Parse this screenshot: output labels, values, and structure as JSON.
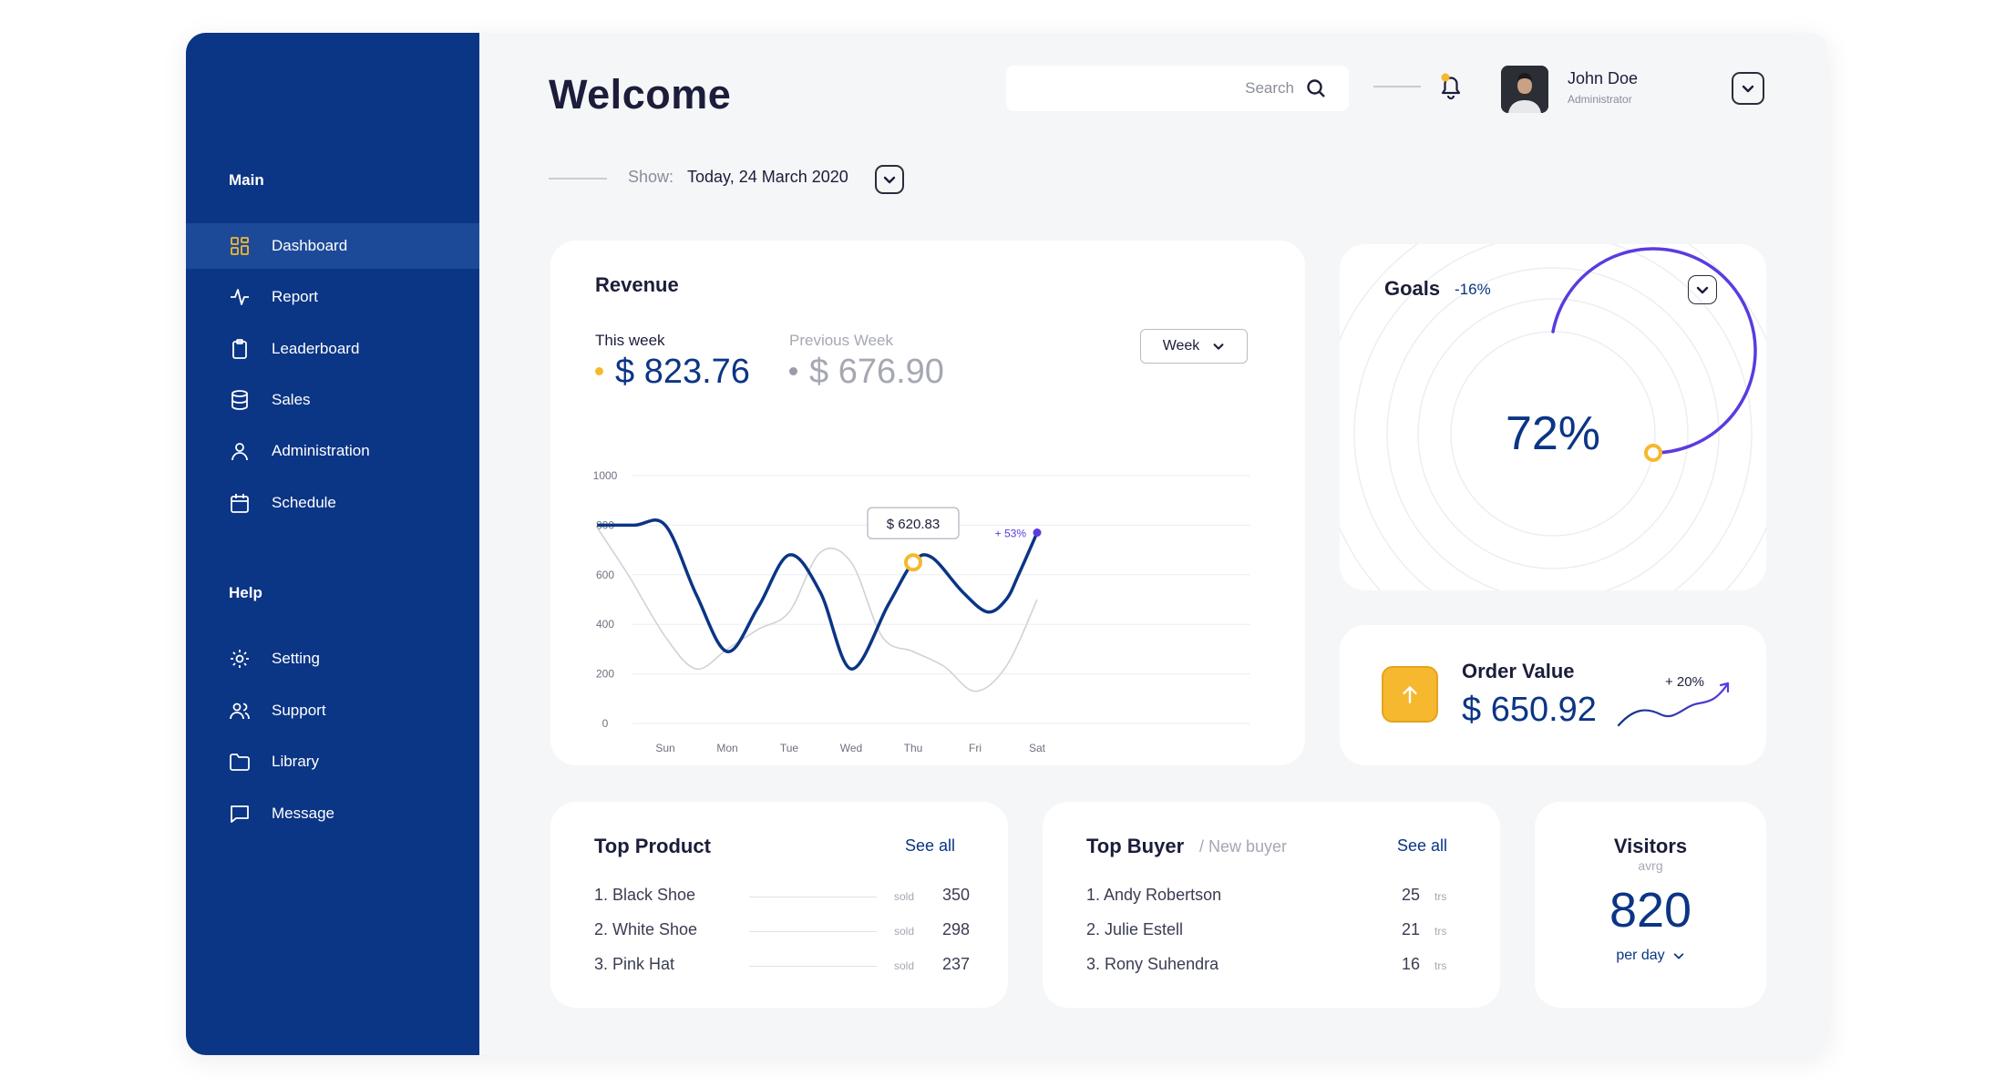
{
  "sidebar": {
    "main_heading": "Main",
    "main_items": [
      {
        "label": "Dashboard",
        "icon": "dashboard-grid-icon"
      },
      {
        "label": "Report",
        "icon": "activity-pulse-icon"
      },
      {
        "label": "Leaderboard",
        "icon": "clipboard-icon"
      },
      {
        "label": "Sales",
        "icon": "database-icon"
      },
      {
        "label": "Administration",
        "icon": "user-icon"
      },
      {
        "label": "Schedule",
        "icon": "calendar-icon"
      }
    ],
    "help_heading": "Help",
    "help_items": [
      {
        "label": "Setting",
        "icon": "gear-icon"
      },
      {
        "label": "Support",
        "icon": "users-icon"
      },
      {
        "label": "Library",
        "icon": "folder-icon"
      },
      {
        "label": "Message",
        "icon": "message-icon"
      }
    ],
    "active_item": "Dashboard"
  },
  "header": {
    "title": "Welcome",
    "search_placeholder": "Search",
    "user_name": "John Doe",
    "user_role": "Administrator",
    "show_label": "Show:",
    "show_date": "Today, 24 March 2020"
  },
  "revenue": {
    "title": "Revenue",
    "this_week_label": "This week",
    "this_week_value": "$ 823.76",
    "prev_week_label": "Previous Week",
    "prev_week_value": "$ 676.90",
    "period_select": "Week",
    "tooltip": "$ 620.83",
    "end_badge": "+ 53%"
  },
  "chart_data": {
    "type": "line",
    "categories": [
      "Sun",
      "Mon",
      "Tue",
      "Wed",
      "Thu",
      "Fri",
      "Sat"
    ],
    "yticks": [
      1000,
      800,
      600,
      400,
      200,
      0
    ],
    "ylim": [
      0,
      1000
    ],
    "series": [
      {
        "name": "This week",
        "color": "#0b3585",
        "x": [
          -1.1,
          -0.5,
          0,
          0.5,
          1.0,
          1.5,
          2.0,
          2.5,
          3.0,
          3.6,
          4.0,
          4.3,
          4.8,
          5.2,
          5.5,
          5.7,
          6.0
        ],
        "y": [
          800,
          800,
          800,
          520,
          290,
          470,
          680,
          530,
          220,
          480,
          650,
          670,
          530,
          450,
          500,
          600,
          770
        ]
      },
      {
        "name": "Previous Week",
        "color": "#cfd2d8",
        "x": [
          -1.1,
          -0.6,
          0,
          0.5,
          1.0,
          1.5,
          2.0,
          2.5,
          3.0,
          3.5,
          4.0,
          4.5,
          5.0,
          5.5,
          6.0
        ],
        "y": [
          790,
          600,
          350,
          220,
          300,
          380,
          450,
          690,
          650,
          350,
          290,
          230,
          130,
          230,
          500
        ]
      }
    ],
    "highlight": {
      "x": 4.0,
      "y": 650
    }
  },
  "goals": {
    "title": "Goals",
    "change": "-16%",
    "percent": 72,
    "percent_label": "72%"
  },
  "order_value": {
    "title": "Order Value",
    "value": "$ 650.92",
    "change": "+ 20%"
  },
  "top_product": {
    "title": "Top Product",
    "see_all": "See all",
    "unit": "sold",
    "items": [
      {
        "name": "1. Black Shoe",
        "value": "350"
      },
      {
        "name": "2. White Shoe",
        "value": "298"
      },
      {
        "name": "3. Pink Hat",
        "value": "237"
      }
    ]
  },
  "top_buyer": {
    "title": "Top Buyer",
    "subtitle": "/ New buyer",
    "see_all": "See all",
    "unit": "trs",
    "items": [
      {
        "name": "1. Andy Robertson",
        "value": "25"
      },
      {
        "name": "2. Julie Estell",
        "value": "21"
      },
      {
        "name": "3. Rony Suhendra",
        "value": "16"
      }
    ]
  },
  "visitors": {
    "title": "Visitors",
    "subtitle": "avrg",
    "value": "820",
    "period": "per day"
  },
  "colors": {
    "sidebar": "#0b3585",
    "primary": "#0b3585",
    "accent": "#f5b82e",
    "purple": "#5b3be0",
    "background": "#f5f6f8"
  }
}
